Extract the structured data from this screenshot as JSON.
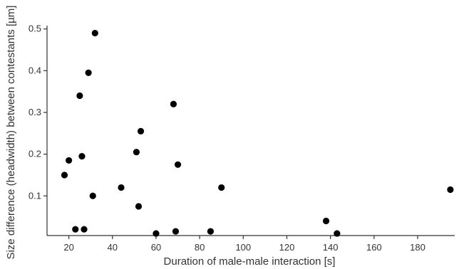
{
  "chart_data": {
    "type": "scatter",
    "title": "",
    "xlabel": "Duration of male-male interaction [s]",
    "ylabel": "Size difference (headwidth) between contestants [µm]",
    "xlim": [
      10,
      197
    ],
    "ylim": [
      0.005,
      0.508
    ],
    "xticks": [
      20,
      40,
      60,
      80,
      100,
      120,
      140,
      160,
      180
    ],
    "yticks": [
      0.1,
      0.2,
      0.3,
      0.4,
      0.5
    ],
    "xtick_labels": [
      "20",
      "40",
      "60",
      "80",
      "100",
      "120",
      "140",
      "160",
      "180"
    ],
    "ytick_labels": [
      "0.1",
      "0.2",
      "0.3",
      "0.4",
      "0.5"
    ],
    "grid": false,
    "marker_color": "#000000",
    "axis_color": "#333333",
    "points": [
      {
        "x": 18,
        "y": 0.15
      },
      {
        "x": 20,
        "y": 0.185
      },
      {
        "x": 23,
        "y": 0.02
      },
      {
        "x": 25,
        "y": 0.34
      },
      {
        "x": 26,
        "y": 0.195
      },
      {
        "x": 27,
        "y": 0.02
      },
      {
        "x": 29,
        "y": 0.395
      },
      {
        "x": 31,
        "y": 0.1
      },
      {
        "x": 32,
        "y": 0.49
      },
      {
        "x": 44,
        "y": 0.12
      },
      {
        "x": 51,
        "y": 0.205
      },
      {
        "x": 52,
        "y": 0.075
      },
      {
        "x": 53,
        "y": 0.255
      },
      {
        "x": 60,
        "y": 0.01
      },
      {
        "x": 68,
        "y": 0.32
      },
      {
        "x": 69,
        "y": 0.015
      },
      {
        "x": 70,
        "y": 0.175
      },
      {
        "x": 85,
        "y": 0.015
      },
      {
        "x": 90,
        "y": 0.12
      },
      {
        "x": 138,
        "y": 0.04
      },
      {
        "x": 143,
        "y": 0.01
      },
      {
        "x": 195,
        "y": 0.115
      }
    ]
  }
}
